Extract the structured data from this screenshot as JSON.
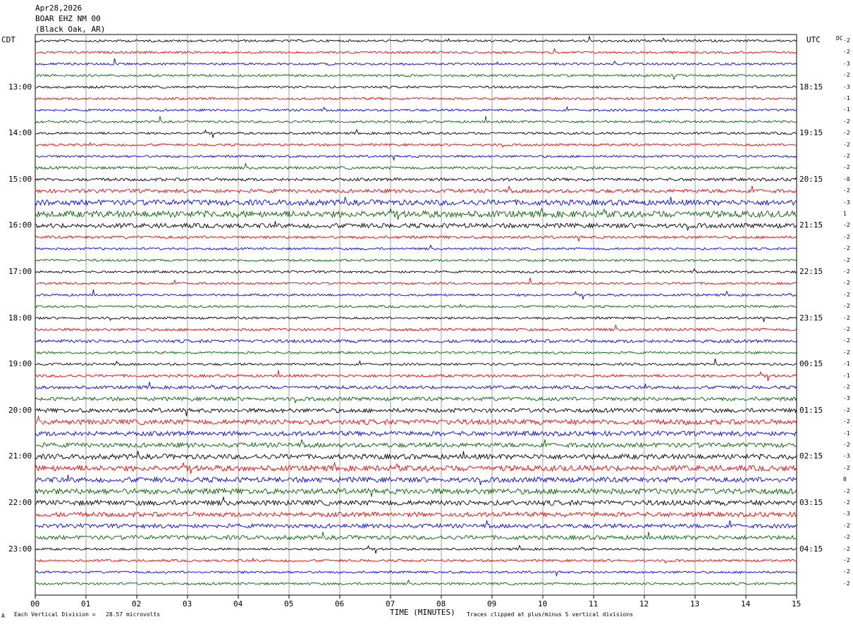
{
  "header": {
    "date": "Apr28,2026",
    "station": "BOAR EHZ NM 00",
    "location": "(Black Oak, AR)"
  },
  "left_tz": "CDT",
  "right_tz": "UTC",
  "dc_label": "DC",
  "footer": {
    "corner_mark": "A",
    "scale": "Each Vertical Division =   28.57 microvolts",
    "clip": "Traces clipped at plus/minus 5 vertical divisions"
  },
  "colors": {
    "cycle": [
      "#000000",
      "#ff0000",
      "#0000ff",
      "#006400"
    ],
    "grid": "#888888"
  },
  "chart_data": {
    "type": "line",
    "xlabel": "TIME (MINUTES)",
    "ylabel": "",
    "title": "",
    "x_ticks": [
      "00",
      "01",
      "02",
      "03",
      "04",
      "05",
      "06",
      "07",
      "08",
      "09",
      "10",
      "11",
      "12",
      "13",
      "14",
      "15"
    ],
    "xlim": [
      0,
      15
    ],
    "left_hour_labels": [
      "13:00",
      "14:00",
      "15:00",
      "16:00",
      "17:00",
      "18:00",
      "19:00",
      "20:00",
      "21:00",
      "22:00",
      "23:00"
    ],
    "right_hour_labels": [
      "18:15",
      "19:15",
      "20:15",
      "21:15",
      "22:15",
      "23:15",
      "00:15",
      "01:15",
      "02:15",
      "03:15",
      "04:15"
    ],
    "trace_count": 48,
    "hour_label_first_trace": 4,
    "traces_per_hour": 4,
    "dc_offsets": [
      "-2",
      "-2",
      "-3",
      "-2",
      "-3",
      "-1",
      "-1",
      "-2",
      "-2",
      "-2",
      "-2",
      "-2",
      "-0",
      "-2",
      "-3",
      "1",
      "-2",
      "-2",
      "-2",
      "-2",
      "-2",
      "-2",
      "-2",
      "-2",
      "-2",
      "-2",
      "-2",
      "-2",
      "-1",
      "-1",
      "-2",
      "-3",
      "-2",
      "-2",
      "-1",
      "-2",
      "-3",
      "-2",
      "0",
      "-2",
      "-2",
      "-3",
      "-2",
      "-2",
      "-2",
      "-2",
      "-2",
      "-2"
    ],
    "noise_levels": [
      1,
      1,
      1,
      1,
      1,
      1,
      1,
      1,
      1,
      1,
      1,
      1.2,
      1.3,
      1.6,
      2.4,
      2.8,
      2,
      1.2,
      1,
      1,
      1,
      1,
      1,
      1,
      1,
      1.2,
      1.4,
      1,
      1,
      1.2,
      1.4,
      1.6,
      1.8,
      2.2,
      2,
      2,
      2.2,
      2.4,
      2.2,
      2.4,
      2.2,
      2,
      1.8,
      1.8,
      1,
      1,
      1,
      1
    ]
  }
}
